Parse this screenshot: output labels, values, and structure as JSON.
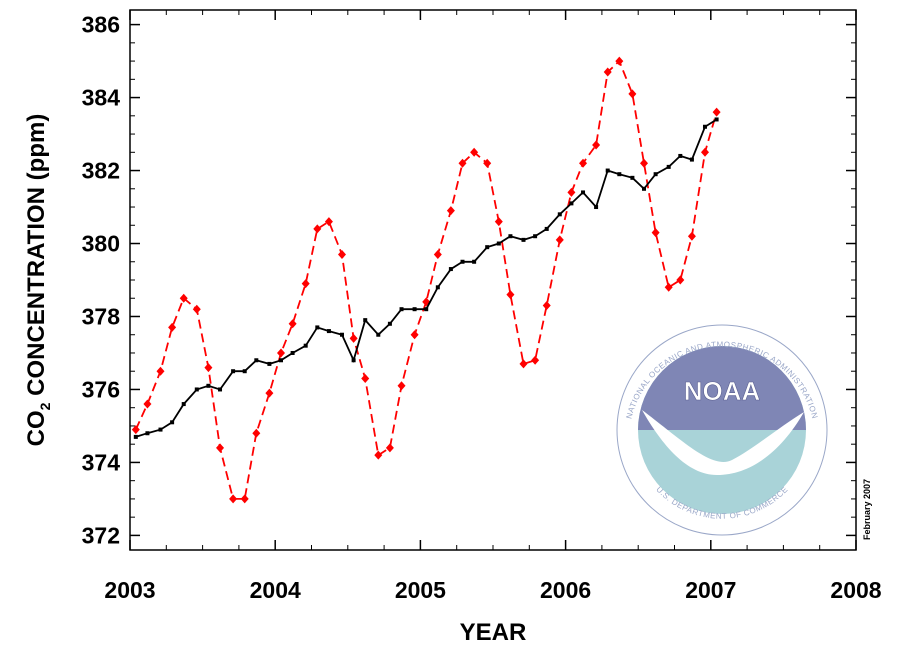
{
  "chart_data": {
    "type": "line",
    "xlabel": "YEAR",
    "ylabel_main": "CO",
    "ylabel_sub": "2",
    "ylabel_rest": " CONCENTRATION (ppm)",
    "xlim": [
      2003,
      2008
    ],
    "ylim": [
      371.6,
      386.4
    ],
    "x_ticks": [
      "2003",
      "2004",
      "2005",
      "2006",
      "2007",
      "2008"
    ],
    "y_ticks": [
      "372",
      "374",
      "376",
      "378",
      "380",
      "382",
      "384",
      "386"
    ],
    "grid": false,
    "series": [
      {
        "color": "#ff0000",
        "style": "dashed",
        "marker": "diamond",
        "x": [
          2003.04,
          2003.12,
          2003.21,
          2003.29,
          2003.37,
          2003.46,
          2003.54,
          2003.62,
          2003.71,
          2003.79,
          2003.87,
          2003.96,
          2004.04,
          2004.12,
          2004.21,
          2004.29,
          2004.37,
          2004.46,
          2004.54,
          2004.62,
          2004.71,
          2004.79,
          2004.87,
          2004.96,
          2005.04,
          2005.12,
          2005.21,
          2005.29,
          2005.37,
          2005.46,
          2005.54,
          2005.62,
          2005.71,
          2005.79,
          2005.87,
          2005.96,
          2006.04,
          2006.12,
          2006.21,
          2006.29,
          2006.37,
          2006.46,
          2006.54,
          2006.62,
          2006.71,
          2006.79,
          2006.87,
          2006.96,
          2007.04
        ],
        "values": [
          374.9,
          375.6,
          376.5,
          377.7,
          378.5,
          378.2,
          376.6,
          374.4,
          373.0,
          373.0,
          374.8,
          375.9,
          377.0,
          377.8,
          378.9,
          380.4,
          380.6,
          379.7,
          377.4,
          376.3,
          374.2,
          374.4,
          376.1,
          377.5,
          378.4,
          379.7,
          380.9,
          382.2,
          382.5,
          382.2,
          380.6,
          378.6,
          376.7,
          376.8,
          378.3,
          380.1,
          381.4,
          382.2,
          382.7,
          384.7,
          385.0,
          384.1,
          382.2,
          380.3,
          378.8,
          379.0,
          380.2,
          382.5,
          383.6
        ]
      },
      {
        "color": "#000000",
        "style": "solid",
        "marker": "square",
        "x": [
          2003.04,
          2003.12,
          2003.21,
          2003.29,
          2003.37,
          2003.46,
          2003.54,
          2003.62,
          2003.71,
          2003.79,
          2003.87,
          2003.96,
          2004.04,
          2004.12,
          2004.21,
          2004.29,
          2004.37,
          2004.46,
          2004.54,
          2004.62,
          2004.71,
          2004.79,
          2004.87,
          2004.96,
          2005.04,
          2005.12,
          2005.21,
          2005.29,
          2005.37,
          2005.46,
          2005.54,
          2005.62,
          2005.71,
          2005.79,
          2005.87,
          2005.96,
          2006.04,
          2006.12,
          2006.21,
          2006.29,
          2006.37,
          2006.46,
          2006.54,
          2006.62,
          2006.71,
          2006.79,
          2006.87,
          2006.96,
          2007.04
        ],
        "values": [
          374.7,
          374.8,
          374.9,
          375.1,
          375.6,
          376.0,
          376.1,
          376.0,
          376.5,
          376.5,
          376.8,
          376.7,
          376.8,
          377.0,
          377.2,
          377.7,
          377.6,
          377.5,
          376.8,
          377.9,
          377.5,
          377.8,
          378.2,
          378.2,
          378.2,
          378.8,
          379.3,
          379.5,
          379.5,
          379.9,
          380.0,
          380.2,
          380.1,
          380.2,
          380.4,
          380.8,
          381.1,
          381.4,
          381.0,
          382.0,
          381.9,
          381.8,
          381.5,
          381.9,
          382.1,
          382.4,
          382.3,
          383.2,
          383.4
        ]
      }
    ]
  },
  "logo": {
    "name": "NOAA",
    "ring_text": "NATIONAL OCEANIC AND ATMOSPHERIC ADMINISTRATION",
    "bottom_text": "U.S. DEPARTMENT OF COMMERCE"
  },
  "stamp": "February 2007"
}
